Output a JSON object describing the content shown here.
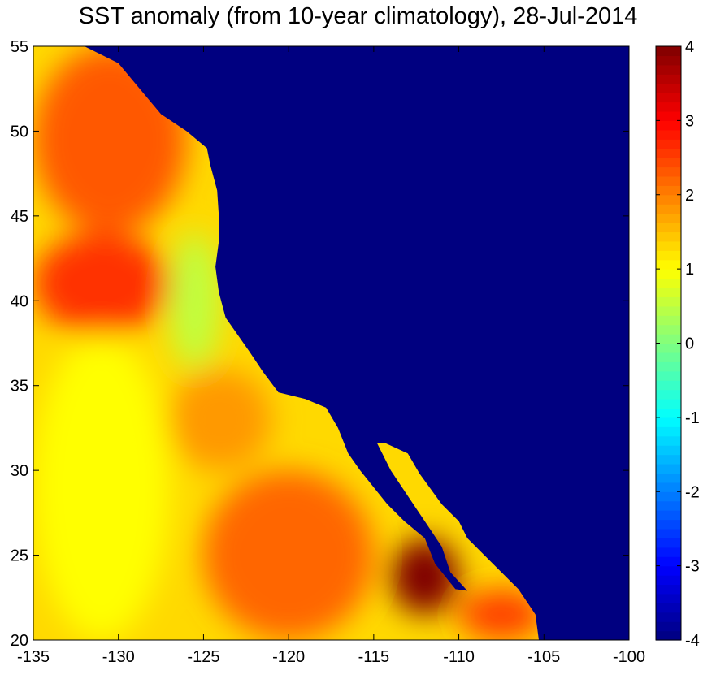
{
  "chart_data": {
    "type": "heatmap",
    "title": "SST anomaly (from 10-year climatology), 28-Jul-2014",
    "xlabel": "",
    "ylabel": "",
    "xlim": [
      -135,
      -100
    ],
    "ylim": [
      20,
      55
    ],
    "x_ticks": [
      -135,
      -130,
      -125,
      -120,
      -115,
      -110,
      -105,
      -100
    ],
    "y_ticks": [
      20,
      25,
      30,
      35,
      40,
      45,
      50,
      55
    ],
    "colorbar": {
      "colormap": "jet",
      "range": [
        -4,
        4
      ],
      "ticks": [
        -4,
        -3,
        -2,
        -1,
        0,
        1,
        2,
        3,
        4
      ]
    },
    "land_value": -4,
    "coastline": [
      [
        -132,
        55
      ],
      [
        -130,
        54
      ],
      [
        -128.5,
        52.2
      ],
      [
        -127.5,
        51
      ],
      [
        -126,
        50
      ],
      [
        -124.8,
        49
      ],
      [
        -124.6,
        48
      ],
      [
        -124.2,
        46.5
      ],
      [
        -124.1,
        45
      ],
      [
        -124.1,
        43.5
      ],
      [
        -124.3,
        42
      ],
      [
        -124.1,
        40.5
      ],
      [
        -123.7,
        39
      ],
      [
        -123,
        38
      ],
      [
        -122.3,
        37
      ],
      [
        -121.5,
        35.8
      ],
      [
        -120.6,
        34.6
      ],
      [
        -119,
        34.2
      ],
      [
        -117.8,
        33.7
      ],
      [
        -117.1,
        32.5
      ],
      [
        -116.5,
        31
      ],
      [
        -115.8,
        30
      ],
      [
        -115,
        29
      ],
      [
        -114.2,
        28
      ],
      [
        -113.2,
        27
      ],
      [
        -112,
        26
      ],
      [
        -111.4,
        24.5
      ],
      [
        -110.2,
        23
      ],
      [
        -109.5,
        22.9
      ],
      [
        -110.5,
        24
      ],
      [
        -111,
        25.5
      ],
      [
        -112,
        27
      ],
      [
        -113,
        28.5
      ],
      [
        -114,
        30
      ],
      [
        -114.8,
        31.6
      ],
      [
        -114.3,
        31.6
      ],
      [
        -113,
        31
      ],
      [
        -112.3,
        29.8
      ],
      [
        -111,
        28
      ],
      [
        -110,
        27
      ],
      [
        -109.5,
        26
      ],
      [
        -108.5,
        25
      ],
      [
        -107.5,
        24
      ],
      [
        -106.5,
        23
      ],
      [
        -105.5,
        21.5
      ],
      [
        -105.3,
        20
      ]
    ],
    "anomaly_regions": [
      {
        "lon": [
          -135,
          -126
        ],
        "lat": [
          44,
          55
        ],
        "value": 2.3
      },
      {
        "lon": [
          -135,
          -127
        ],
        "lat": [
          38,
          44
        ],
        "value": 2.6
      },
      {
        "lon": [
          -127,
          -124
        ],
        "lat": [
          36,
          44
        ],
        "value": 0.5
      },
      {
        "lon": [
          -135,
          -127
        ],
        "lat": [
          20,
          38
        ],
        "value": 1.0
      },
      {
        "lon": [
          -127,
          -121
        ],
        "lat": [
          30,
          36
        ],
        "value": 1.8
      },
      {
        "lon": [
          -125,
          -115
        ],
        "lat": [
          20,
          30
        ],
        "value": 2.2
      },
      {
        "lon": [
          -114,
          -110
        ],
        "lat": [
          21.5,
          26
        ],
        "value": 4.0
      },
      {
        "lon": [
          -110,
          -105
        ],
        "lat": [
          20,
          23
        ],
        "value": 2.5
      }
    ]
  }
}
